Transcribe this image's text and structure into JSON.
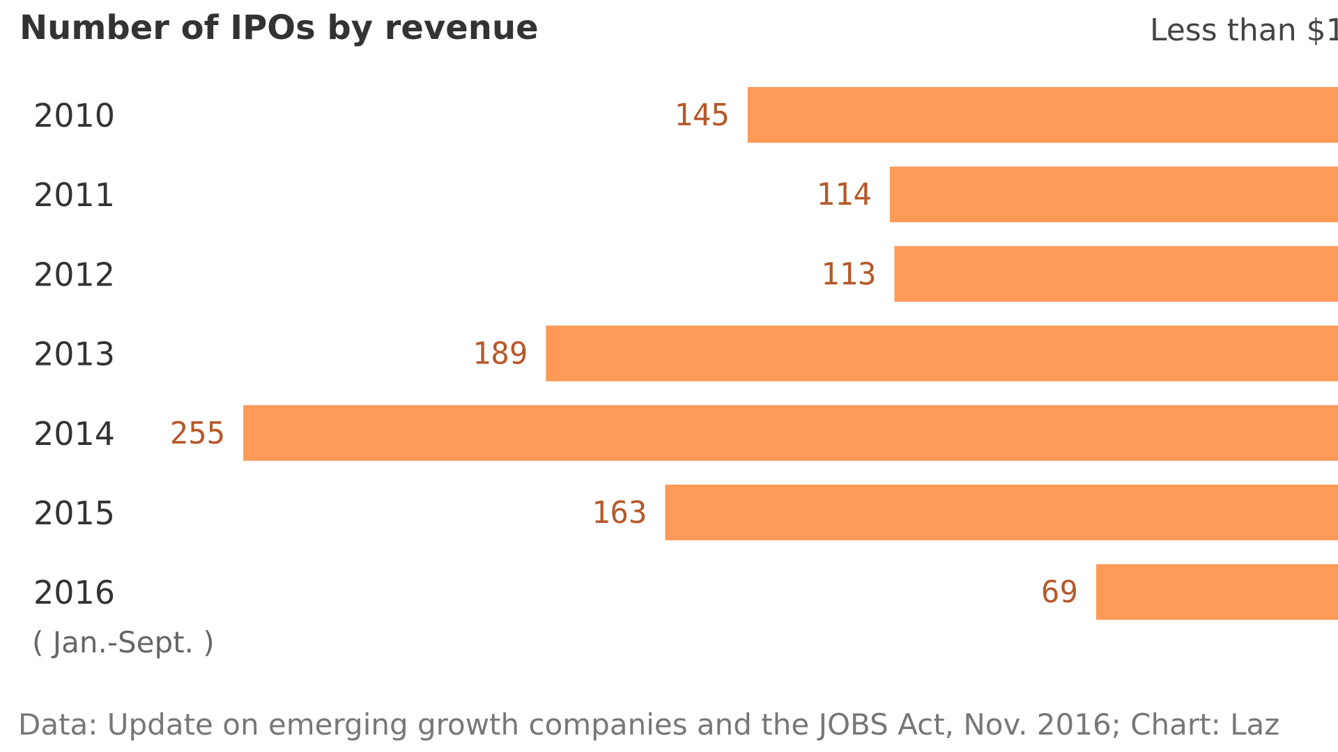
{
  "chart_data": {
    "type": "bar",
    "orientation": "horizontal",
    "title": "Number of IPOs by revenue",
    "legend": [
      "Less than $1"
    ],
    "categories": [
      "2010",
      "2011",
      "2012",
      "2013",
      "2014",
      "2015",
      "2016"
    ],
    "category_notes": {
      "2016": "( Jan.-Sept. )"
    },
    "series": [
      {
        "name": "Less than $1",
        "values": [
          145,
          114,
          113,
          189,
          255,
          163,
          69
        ],
        "color": "#fd9a58"
      }
    ],
    "label_color": "#b5592a",
    "grid": false,
    "source": "Data: Update on emerging growth companies and the JOBS Act, Nov. 2016; Chart: Laz"
  }
}
